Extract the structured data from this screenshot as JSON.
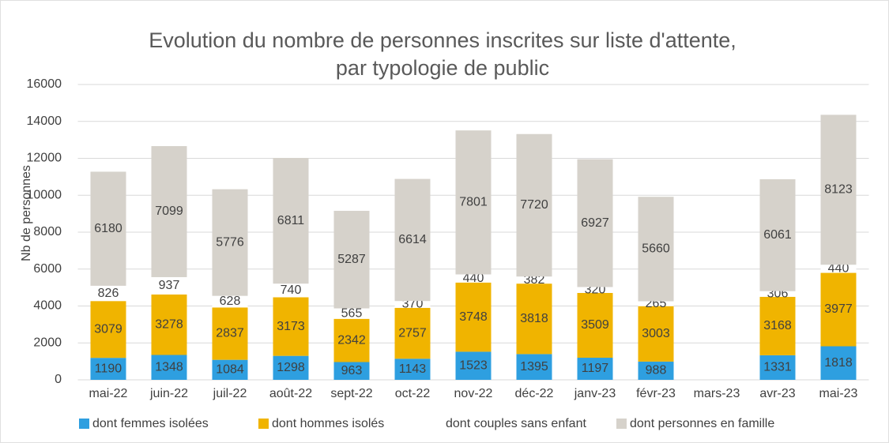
{
  "chart_data": {
    "type": "stacked_bar",
    "title": [
      "Evolution du nombre de personnes inscrites sur liste d'attente,",
      "par typologie de public"
    ],
    "y_label": "Nb de personnes",
    "categories": [
      "mai-22",
      "juin-22",
      "juil-22",
      "août-22",
      "sept-22",
      "oct-22",
      "nov-22",
      "déc-22",
      "janv-23",
      "févr-23",
      "mars-23",
      "avr-23",
      "mai-23"
    ],
    "series": [
      {
        "name": "dont femmes isolées",
        "color": "#2e9fe0",
        "values": [
          1190,
          1348,
          1084,
          1298,
          963,
          1143,
          1523,
          1395,
          1197,
          988,
          null,
          1331,
          1818
        ]
      },
      {
        "name": "dont hommes isolés",
        "color": "#f0b400",
        "values": [
          3079,
          3278,
          2837,
          3173,
          2342,
          2757,
          3748,
          3818,
          3509,
          3003,
          null,
          3168,
          3977
        ]
      },
      {
        "name": "dont couples sans enfant",
        "color": "#ffffff",
        "values": [
          826,
          937,
          628,
          740,
          565,
          370,
          440,
          382,
          320,
          265,
          null,
          306,
          440
        ]
      },
      {
        "name": "dont personnes en famille",
        "color": "#d6d2cb",
        "values": [
          6180,
          7099,
          5776,
          6811,
          5287,
          6614,
          7801,
          7720,
          6927,
          5660,
          null,
          6061,
          8123
        ]
      }
    ],
    "ylim": [
      0,
      16000
    ],
    "yticks": [
      0,
      2000,
      4000,
      6000,
      8000,
      10000,
      12000,
      14000,
      16000
    ],
    "grid": true
  }
}
